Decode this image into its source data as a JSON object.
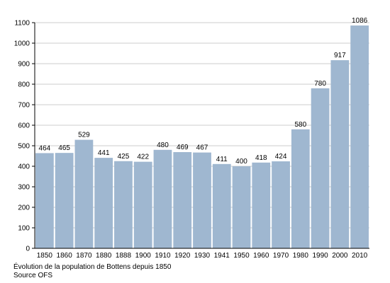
{
  "chart_data": {
    "type": "bar",
    "categories": [
      "1850",
      "1860",
      "1870",
      "1880",
      "1888",
      "1900",
      "1910",
      "1920",
      "1930",
      "1941",
      "1950",
      "1960",
      "1970",
      "1980",
      "1990",
      "2000",
      "2010"
    ],
    "values": [
      464,
      465,
      529,
      441,
      425,
      422,
      480,
      469,
      467,
      411,
      400,
      418,
      424,
      580,
      780,
      917,
      1086
    ],
    "ylim": [
      0,
      1100
    ],
    "yticks": [
      0,
      100,
      200,
      300,
      400,
      500,
      600,
      700,
      800,
      900,
      1000,
      1100
    ],
    "grid": true,
    "bar_color": "#9fb7d0"
  },
  "caption": {
    "line1": "Évolution de la population de Bottens depuis 1850",
    "line2": "Source OFS"
  }
}
